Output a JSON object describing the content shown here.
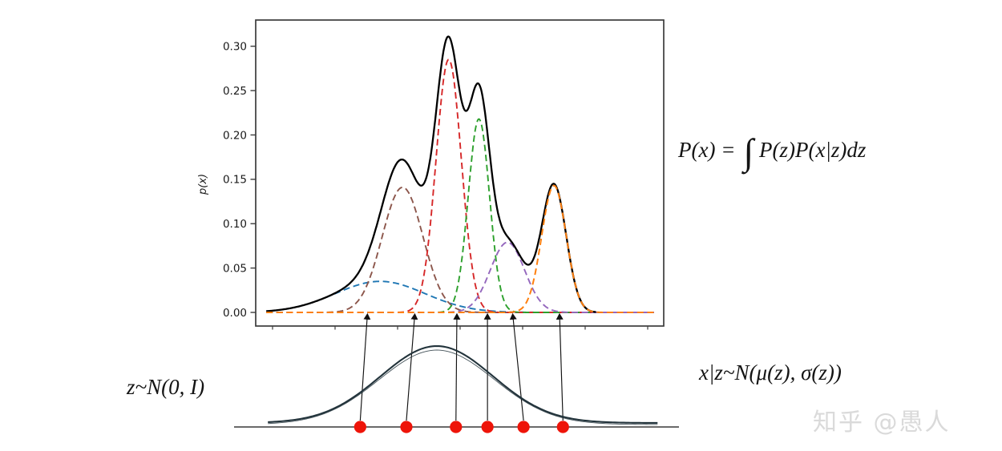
{
  "page": {
    "background": "#ffffff",
    "watermark": "知乎 @愚人"
  },
  "formulas": {
    "marginal_lhs": "P(x) =",
    "marginal_integral": "∫",
    "marginal_rhs": "P(z)P(x|z)dz",
    "latent_prior": "z~N(0, I)",
    "conditional": "x|z~N(μ(z), σ(z))"
  },
  "chart_data": {
    "type": "line",
    "title": "",
    "xlabel": "",
    "ylabel": "p(x)",
    "x_domain": [
      0,
      10
    ],
    "ylim": [
      -0.015,
      0.33
    ],
    "grid": false,
    "legend": "none",
    "yticks": [
      "0.00",
      "0.05",
      "0.10",
      "0.15",
      "0.20",
      "0.25",
      "0.30"
    ],
    "ytick_values": [
      0.0,
      0.05,
      0.1,
      0.15,
      0.2,
      0.25,
      0.3
    ],
    "mixture": {
      "name": "mixture-density p(x) = sum of components",
      "color": "#000000",
      "style": "solid",
      "peak_value": 0.312
    },
    "components": [
      {
        "name": "component-1-blue",
        "color": "#1f77b4",
        "mean": 3.05,
        "std": 1.1,
        "peak": 0.035,
        "style": "dashed"
      },
      {
        "name": "component-2-brown",
        "color": "#8c564b",
        "mean": 3.6,
        "std": 0.5,
        "peak": 0.141,
        "style": "dashed"
      },
      {
        "name": "component-3-red",
        "color": "#d62728",
        "mean": 4.73,
        "std": 0.31,
        "peak": 0.285,
        "style": "dashed"
      },
      {
        "name": "component-4-green",
        "color": "#2ca02c",
        "mean": 5.47,
        "std": 0.26,
        "peak": 0.218,
        "style": "dashed"
      },
      {
        "name": "component-5-purple",
        "color": "#9467bd",
        "mean": 6.17,
        "std": 0.42,
        "peak": 0.079,
        "style": "dashed"
      },
      {
        "name": "component-6-orange",
        "color": "#ff7f0e",
        "mean": 7.31,
        "std": 0.3,
        "peak": 0.143,
        "style": "dashed"
      }
    ]
  },
  "latent": {
    "description": "standard normal prior over z with sampled points mapped to component means",
    "curve": {
      "color": "#22333b",
      "mean": 0,
      "std": 1
    },
    "axis_range": [
      -3.6,
      4.3
    ],
    "samples": {
      "color": "#ee1409",
      "z_values": [
        -1.36,
        -0.54,
        0.34,
        0.9,
        1.54,
        2.24
      ]
    },
    "arrow_targets_x": [
      2.73,
      3.89,
      4.93,
      5.68,
      6.31,
      7.45
    ],
    "arrow_color": "#111111"
  }
}
